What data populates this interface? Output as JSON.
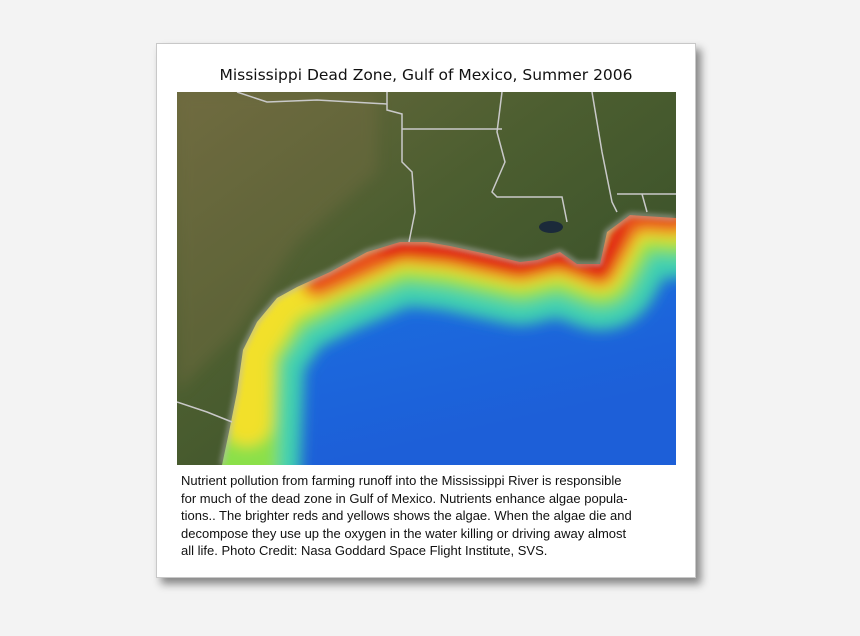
{
  "title": "Mississippi Dead Zone, Gulf of Mexico, Summer 2006",
  "caption_lines": [
    "Nutrient pollution from farming runoff into the Mississippi River is responsible",
    "for much of the dead zone in Gulf of Mexico.  Nutrients enhance algae popula-",
    "tions.. The brighter reds and yellows shows the algae.  When the algae die and",
    "decompose they use up the oxygen in the water killing or driving away almost",
    "all life.  Photo Credit: Nasa Goddard Space Flight Institute, SVS."
  ]
}
